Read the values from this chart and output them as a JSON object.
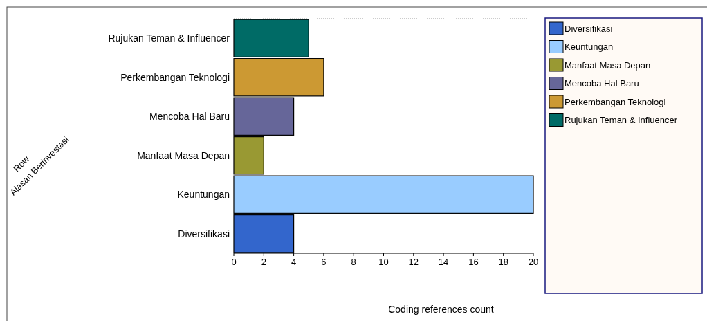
{
  "chart_data": {
    "type": "bar",
    "orientation": "horizontal",
    "xlabel": "Coding references count",
    "ylabel": "Alasan Berinvestasi",
    "annotations": [
      "Row"
    ],
    "categories": [
      "Rujukan Teman & Influencer",
      "Perkembangan Teknologi",
      "Mencoba Hal Baru",
      "Manfaat Masa Depan",
      "Keuntungan",
      "Diversifikasi"
    ],
    "series": [
      {
        "name": "Diversifikasi",
        "color": "#3366cc",
        "values": [
          null,
          null,
          null,
          null,
          null,
          4
        ]
      },
      {
        "name": "Keuntungan",
        "color": "#99ccff",
        "values": [
          null,
          null,
          null,
          null,
          20,
          null
        ]
      },
      {
        "name": "Manfaat Masa Depan",
        "color": "#999933",
        "values": [
          null,
          null,
          null,
          2,
          null,
          null
        ]
      },
      {
        "name": "Mencoba Hal Baru",
        "color": "#666699",
        "values": [
          null,
          null,
          4,
          null,
          null,
          null
        ]
      },
      {
        "name": "Perkembangan Teknologi",
        "color": "#cc9933",
        "values": [
          null,
          6,
          null,
          null,
          null,
          null
        ]
      },
      {
        "name": "Rujukan Teman & Influencer",
        "color": "#006b66",
        "values": [
          5,
          null,
          null,
          null,
          null,
          null
        ]
      }
    ],
    "xlim": [
      0,
      20
    ],
    "xticks": [
      0,
      2,
      4,
      6,
      8,
      10,
      12,
      14,
      16,
      18,
      20
    ],
    "grid": false,
    "legend": "right"
  }
}
